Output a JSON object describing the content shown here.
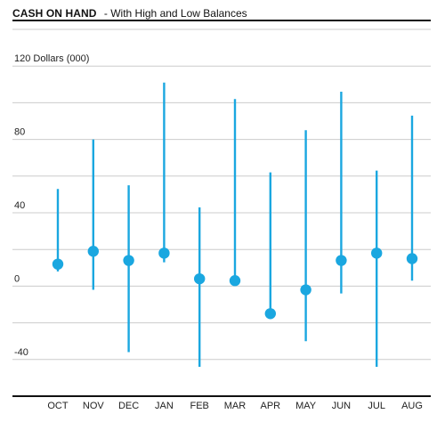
{
  "chart_data": {
    "type": "high-low-point",
    "title": "CASH ON HAND",
    "subtitle": "- With High and Low Balances",
    "ylabel": "Dollars (000)",
    "ylim": [
      -60,
      140
    ],
    "yticks": [
      120,
      80,
      40,
      0,
      -40
    ],
    "categories": [
      "OCT",
      "NOV",
      "DEC",
      "JAN",
      "FEB",
      "MAR",
      "APR",
      "MAY",
      "JUN",
      "JUL",
      "AUG"
    ],
    "values": [
      12,
      19,
      14,
      18,
      4,
      3,
      -15,
      -2,
      14,
      18,
      15
    ],
    "high": [
      53,
      80,
      55,
      111,
      43,
      102,
      62,
      85,
      106,
      63,
      93
    ],
    "low": [
      8,
      -2,
      -36,
      13,
      -44,
      3,
      -15,
      -30,
      -4,
      -44,
      3
    ],
    "grid": true,
    "legend": "none",
    "colors": {
      "series": "#1aa7e0",
      "grid": "#cccccc",
      "axis": "#111111"
    }
  }
}
